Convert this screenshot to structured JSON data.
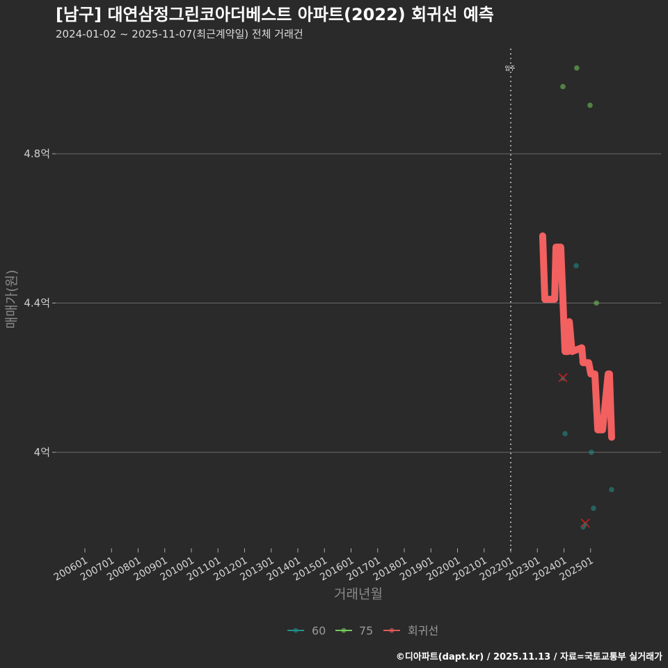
{
  "title": "[남구] 대연삼정그린코아더베스트 아파트(2022) 회귀선 예측",
  "subtitle": "2024-01-02 ~ 2025-11-07(최근계약일) 전체 거래건",
  "footer": "©디아파트(dapt.kr) / 2025.11.13 / 자료=국토교통부 실거래가",
  "colors": {
    "background": "#2a2a2a",
    "grid": "#6a6a6a",
    "series_60": "#22908a",
    "series_75": "#76c95a",
    "regression": "#f26060",
    "outlier": "#b02020"
  },
  "chart_data": {
    "type": "scatter",
    "title": "[남구] 대연삼정그린코아더베스트 아파트(2022) 회귀선 예측",
    "subtitle": "2024-01-02 ~ 2025-11-07(최근계약일) 전체 거래건",
    "xlabel": "거래년월",
    "ylabel": "매매가(원)",
    "xlim": [
      2004.9,
      2027.65
    ],
    "ylim": [
      3.73,
      5.08
    ],
    "grid": true,
    "legend_position": "bottom",
    "x_ticks": [
      "200601",
      "200701",
      "200801",
      "200901",
      "201001",
      "201101",
      "201201",
      "201301",
      "201401",
      "201501",
      "201601",
      "201701",
      "201801",
      "201901",
      "202001",
      "202101",
      "202201",
      "202301",
      "202401",
      "202501"
    ],
    "y_ticks": [
      {
        "value": 4.0,
        "label": "4억"
      },
      {
        "value": 4.4,
        "label": "4.4억"
      },
      {
        "value": 4.8,
        "label": "4.8억"
      }
    ],
    "annotations": [
      {
        "type": "vline",
        "x": 2022.0,
        "x_label": "202201",
        "label": "입주"
      }
    ],
    "legend": [
      {
        "name": "60",
        "color": "#22908a"
      },
      {
        "name": "75",
        "color": "#76c95a"
      },
      {
        "name": "회귀선",
        "color": "#e05a5a"
      }
    ],
    "series": [
      {
        "name": "60",
        "type": "scatter",
        "unit": "억",
        "points": [
          {
            "date": "2024-01",
            "x": 2024.04,
            "price": 4.05
          },
          {
            "date": "2024-06",
            "x": 2024.46,
            "price": 4.5
          },
          {
            "date": "2024-09",
            "x": 2024.72,
            "price": 3.8
          },
          {
            "date": "2025-01",
            "x": 2025.03,
            "price": 4.0
          },
          {
            "date": "2025-02",
            "x": 2025.11,
            "price": 3.85
          },
          {
            "date": "2025-10",
            "x": 2025.79,
            "price": 3.9
          }
        ]
      },
      {
        "name": "75",
        "type": "scatter",
        "unit": "억",
        "points": [
          {
            "date": "2024-01",
            "x": 2023.96,
            "price": 4.98
          },
          {
            "date": "2024-06",
            "x": 2024.48,
            "price": 5.03
          },
          {
            "date": "2024-12",
            "x": 2024.98,
            "price": 4.93
          },
          {
            "date": "2025-03",
            "x": 2025.22,
            "price": 4.4
          }
        ]
      },
      {
        "name": "회귀선",
        "type": "line",
        "unit": "억",
        "points": [
          {
            "x": 2023.2,
            "price": 4.58
          },
          {
            "x": 2023.28,
            "price": 4.41
          },
          {
            "x": 2023.65,
            "price": 4.41
          },
          {
            "x": 2023.7,
            "price": 4.55
          },
          {
            "x": 2023.88,
            "price": 4.55
          },
          {
            "x": 2024.04,
            "price": 4.27
          },
          {
            "x": 2024.14,
            "price": 4.27
          },
          {
            "x": 2024.2,
            "price": 4.35
          },
          {
            "x": 2024.3,
            "price": 4.27
          },
          {
            "x": 2024.67,
            "price": 4.28
          },
          {
            "x": 2024.72,
            "price": 4.24
          },
          {
            "x": 2024.93,
            "price": 4.24
          },
          {
            "x": 2025.01,
            "price": 4.21
          },
          {
            "x": 2025.16,
            "price": 4.21
          },
          {
            "x": 2025.27,
            "price": 4.06
          },
          {
            "x": 2025.45,
            "price": 4.06
          },
          {
            "x": 2025.66,
            "price": 4.21
          },
          {
            "x": 2025.71,
            "price": 4.21
          },
          {
            "x": 2025.79,
            "price": 4.04
          }
        ]
      }
    ],
    "outliers": [
      {
        "date": "2024-01",
        "x": 2023.96,
        "price": 4.2
      },
      {
        "date": "2024-10",
        "x": 2024.8,
        "price": 3.81
      }
    ]
  }
}
